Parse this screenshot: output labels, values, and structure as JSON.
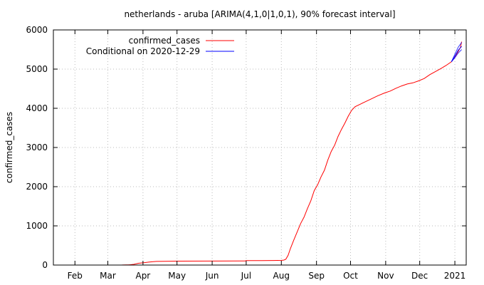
{
  "chart_data": {
    "type": "line",
    "title": "netherlands - aruba [ARIMA(4,1,0|1,0,1), 90% forecast interval]",
    "xlabel": "",
    "ylabel": "confirmed_cases",
    "ylim": [
      0,
      6000
    ],
    "yticks": [
      0,
      1000,
      2000,
      3000,
      4000,
      5000,
      6000
    ],
    "xlim": [
      "2020-01-13",
      "2021-01-11"
    ],
    "xticks": [
      {
        "date": "2020-02-01",
        "label": "Feb"
      },
      {
        "date": "2020-03-01",
        "label": "Mar"
      },
      {
        "date": "2020-04-01",
        "label": "Apr"
      },
      {
        "date": "2020-05-01",
        "label": "May"
      },
      {
        "date": "2020-06-01",
        "label": "Jun"
      },
      {
        "date": "2020-07-01",
        "label": "Jul"
      },
      {
        "date": "2020-08-01",
        "label": "Aug"
      },
      {
        "date": "2020-09-01",
        "label": "Sep"
      },
      {
        "date": "2020-10-01",
        "label": "Oct"
      },
      {
        "date": "2020-11-01",
        "label": "Nov"
      },
      {
        "date": "2020-12-01",
        "label": "Dec"
      },
      {
        "date": "2021-01-01",
        "label": "2021"
      }
    ],
    "grid": true,
    "legend_position": "top-left",
    "series": [
      {
        "name": "confirmed_cases",
        "color": "#ff0000",
        "points": [
          [
            "2020-03-13",
            0
          ],
          [
            "2020-03-14",
            2
          ],
          [
            "2020-03-17",
            3
          ],
          [
            "2020-03-19",
            5
          ],
          [
            "2020-03-21",
            9
          ],
          [
            "2020-03-24",
            19
          ],
          [
            "2020-03-26",
            33
          ],
          [
            "2020-03-28",
            46
          ],
          [
            "2020-03-31",
            55
          ],
          [
            "2020-04-03",
            64
          ],
          [
            "2020-04-06",
            74
          ],
          [
            "2020-04-10",
            86
          ],
          [
            "2020-04-13",
            92
          ],
          [
            "2020-04-20",
            97
          ],
          [
            "2020-05-01",
            100
          ],
          [
            "2020-06-01",
            101
          ],
          [
            "2020-06-25",
            103
          ],
          [
            "2020-06-30",
            105
          ],
          [
            "2020-07-01",
            112
          ],
          [
            "2020-07-15",
            114
          ],
          [
            "2020-07-25",
            117
          ],
          [
            "2020-08-01",
            120
          ],
          [
            "2020-08-03",
            125
          ],
          [
            "2020-08-05",
            150
          ],
          [
            "2020-08-07",
            250
          ],
          [
            "2020-08-09",
            420
          ],
          [
            "2020-08-12",
            640
          ],
          [
            "2020-08-15",
            850
          ],
          [
            "2020-08-18",
            1060
          ],
          [
            "2020-08-21",
            1220
          ],
          [
            "2020-08-24",
            1440
          ],
          [
            "2020-08-27",
            1640
          ],
          [
            "2020-08-30",
            1900
          ],
          [
            "2020-09-02",
            2050
          ],
          [
            "2020-09-05",
            2250
          ],
          [
            "2020-09-08",
            2420
          ],
          [
            "2020-09-11",
            2680
          ],
          [
            "2020-09-14",
            2900
          ],
          [
            "2020-09-17",
            3060
          ],
          [
            "2020-09-20",
            3280
          ],
          [
            "2020-09-23",
            3460
          ],
          [
            "2020-09-26",
            3620
          ],
          [
            "2020-09-29",
            3800
          ],
          [
            "2020-10-02",
            3950
          ],
          [
            "2020-10-05",
            4040
          ],
          [
            "2020-10-10",
            4110
          ],
          [
            "2020-10-15",
            4180
          ],
          [
            "2020-10-20",
            4250
          ],
          [
            "2020-10-25",
            4320
          ],
          [
            "2020-10-31",
            4390
          ],
          [
            "2020-11-05",
            4440
          ],
          [
            "2020-11-10",
            4510
          ],
          [
            "2020-11-15",
            4570
          ],
          [
            "2020-11-20",
            4620
          ],
          [
            "2020-11-25",
            4650
          ],
          [
            "2020-11-30",
            4700
          ],
          [
            "2020-12-05",
            4760
          ],
          [
            "2020-12-10",
            4860
          ],
          [
            "2020-12-15",
            4940
          ],
          [
            "2020-12-20",
            5020
          ],
          [
            "2020-12-24",
            5090
          ],
          [
            "2020-12-29",
            5190
          ],
          [
            "2021-01-01",
            5310
          ],
          [
            "2021-01-04",
            5450
          ],
          [
            "2021-01-06",
            5560
          ],
          [
            "2021-01-07",
            5700
          ]
        ]
      },
      {
        "name": "Conditional on 2020-12-29",
        "color": "#0000ff",
        "points": [
          [
            "2020-12-29",
            5190
          ],
          [
            "2021-01-01",
            5330
          ],
          [
            "2021-01-04",
            5480
          ],
          [
            "2021-01-07",
            5580
          ]
        ],
        "interval_upper": [
          [
            "2020-12-29",
            5190
          ],
          [
            "2021-01-01",
            5380
          ],
          [
            "2021-01-04",
            5560
          ],
          [
            "2021-01-07",
            5680
          ]
        ],
        "interval_lower": [
          [
            "2020-12-29",
            5190
          ],
          [
            "2021-01-01",
            5290
          ],
          [
            "2021-01-04",
            5410
          ],
          [
            "2021-01-07",
            5500
          ]
        ]
      }
    ]
  }
}
